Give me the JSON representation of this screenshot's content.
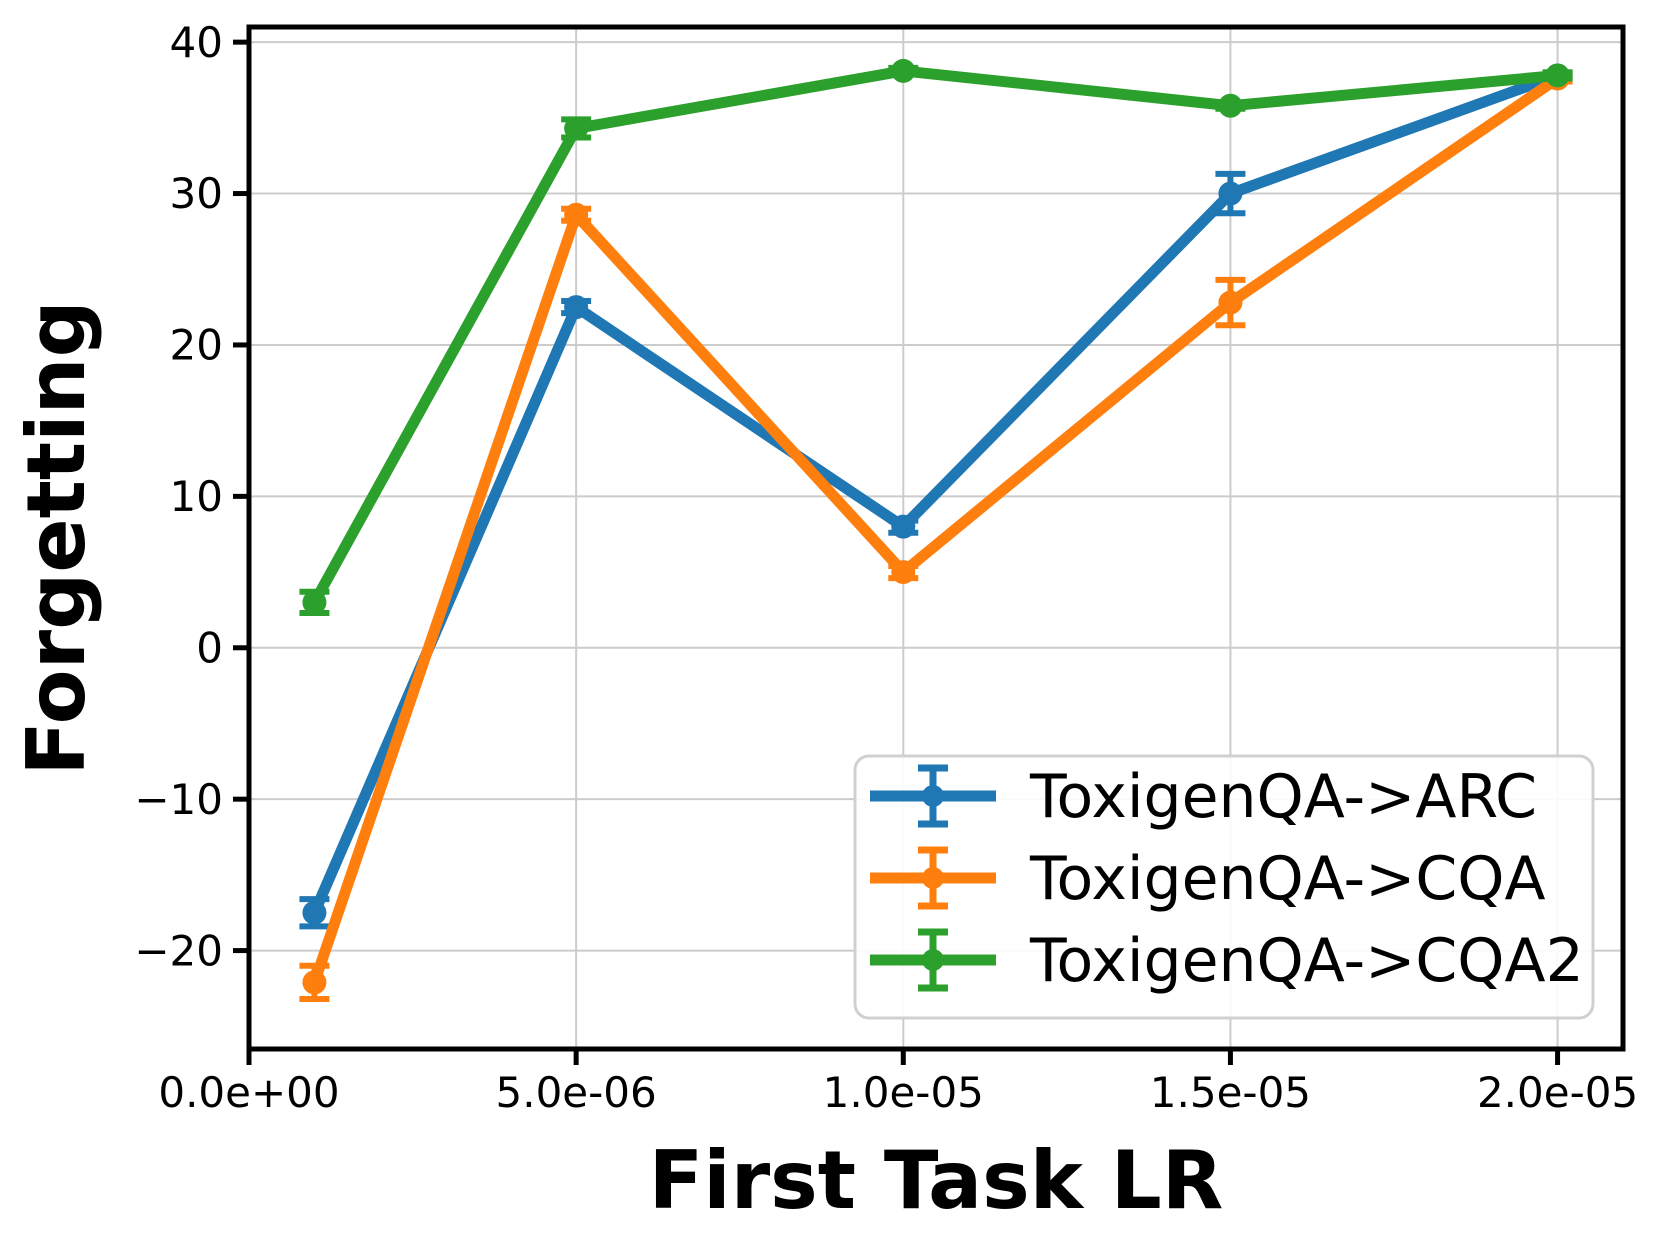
{
  "chart_data": {
    "type": "line",
    "xlabel": "First Task LR",
    "ylabel": "Forgetting",
    "x": [
      1e-06,
      5e-06,
      1e-05,
      1.5e-05,
      2e-05
    ],
    "series": [
      {
        "name": "ToxigenQA->ARC",
        "color": "#1f77b4",
        "values": [
          -17.5,
          22.5,
          8.0,
          30.0,
          37.8
        ],
        "yerr": [
          0.9,
          0.4,
          0.4,
          1.3,
          0.2
        ]
      },
      {
        "name": "ToxigenQA->CQA",
        "color": "#ff7f0e",
        "values": [
          -22.1,
          28.6,
          5.0,
          22.8,
          37.6
        ],
        "yerr": [
          1.1,
          0.4,
          0.4,
          1.5,
          0.2
        ]
      },
      {
        "name": "ToxigenQA->CQA2",
        "color": "#2ca02c",
        "values": [
          3.0,
          34.3,
          38.1,
          35.8,
          37.8
        ],
        "yerr": [
          0.7,
          0.6,
          0.2,
          0.2,
          0.2
        ]
      }
    ],
    "xlim": [
      0,
      2.1e-05
    ],
    "ylim": [
      -26.5,
      41.0
    ],
    "xticks": {
      "values": [
        0,
        5e-06,
        1e-05,
        1.5e-05,
        2e-05
      ],
      "labels": [
        "0.0e+00",
        "5.0e-06",
        "1.0e-05",
        "1.5e-05",
        "2.0e-05"
      ]
    },
    "yticks": {
      "values": [
        -20,
        -10,
        0,
        10,
        20,
        30,
        40
      ],
      "labels": [
        "−20",
        "−10",
        "0",
        "10",
        "20",
        "30",
        "40"
      ]
    },
    "grid": true,
    "legend": {
      "position": "lower right"
    },
    "colors": {
      "grid": "#cccccc",
      "frame": "#000000",
      "text": "#000000",
      "legend_border": "#d0d0d0",
      "background": "#ffffff"
    }
  }
}
